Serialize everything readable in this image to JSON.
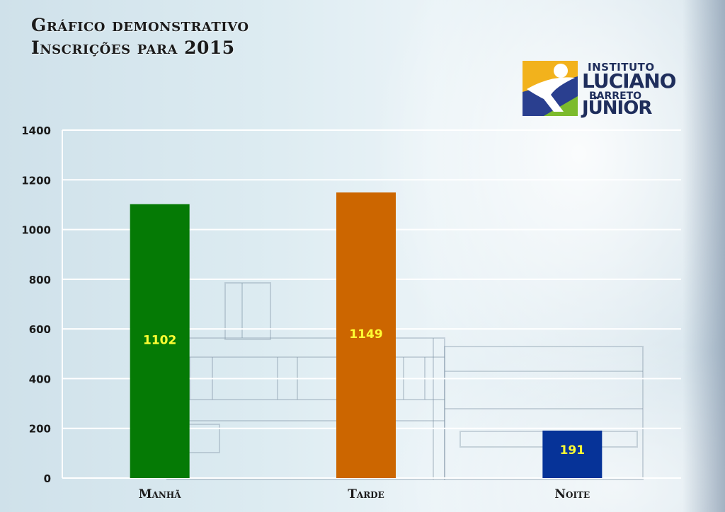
{
  "header": {
    "title_line1": "Gráfico demonstrativo",
    "title_line2": "Inscrições para 2015"
  },
  "logo": {
    "line1": "INSTITUTO",
    "line2": "LUCIANO",
    "line3": "BARRETO",
    "line4": "JÚNIOR"
  },
  "chart_data": {
    "type": "bar",
    "categories": [
      "Manhã",
      "Tarde",
      "Noite"
    ],
    "values": [
      1102,
      1149,
      191
    ],
    "data_labels": [
      "1102",
      "1149",
      "191"
    ],
    "colors": [
      "#057a05",
      "#cc6600",
      "#063398"
    ],
    "ylim": [
      0,
      1400
    ],
    "yticks": [
      0,
      200,
      400,
      600,
      800,
      1000,
      1200,
      1400
    ],
    "ytick_labels": [
      "0",
      "200",
      "400",
      "600",
      "800",
      "1000",
      "1200",
      "1400"
    ],
    "grid": true,
    "data_label_color": "#ffff33",
    "title": "",
    "xlabel": "",
    "ylabel": ""
  }
}
